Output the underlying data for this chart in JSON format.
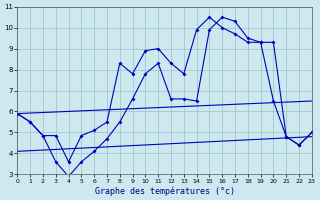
{
  "title": "Graphe des températures (°c)",
  "bg_color": "#cde8ef",
  "grid_color": "#9bbfc8",
  "line_color": "#0000bb",
  "xlim": [
    0,
    23
  ],
  "ylim": [
    3,
    11
  ],
  "xtick_labels": [
    "0",
    "1",
    "2",
    "3",
    "4",
    "5",
    "6",
    "7",
    "8",
    "9",
    "10",
    "11",
    "12",
    "13",
    "14",
    "15",
    "16",
    "17",
    "18",
    "19",
    "20",
    "21",
    "22",
    "23"
  ],
  "ytick_labels": [
    "3",
    "4",
    "5",
    "6",
    "7",
    "8",
    "9",
    "10",
    "11"
  ],
  "max_x": [
    0,
    1,
    2,
    3,
    4,
    5,
    6,
    7,
    8,
    9,
    10,
    11,
    12,
    13,
    14,
    15,
    16,
    17,
    18,
    19,
    20,
    21,
    22,
    23
  ],
  "max_y": [
    5.9,
    5.5,
    4.85,
    4.85,
    3.6,
    4.85,
    5.1,
    5.5,
    8.3,
    7.8,
    8.9,
    9.0,
    8.3,
    7.8,
    9.9,
    10.5,
    10.0,
    9.7,
    9.3,
    9.3,
    9.3,
    4.8,
    4.4,
    5.0
  ],
  "min_x": [
    0,
    1,
    2,
    3,
    4,
    5,
    6,
    7,
    8,
    9,
    10,
    11,
    12,
    13,
    14,
    15,
    16,
    17,
    18,
    19,
    20,
    21,
    22,
    23
  ],
  "min_y": [
    5.9,
    5.5,
    4.85,
    3.6,
    2.9,
    3.6,
    4.1,
    4.7,
    5.5,
    6.6,
    7.8,
    8.3,
    6.6,
    6.6,
    6.5,
    9.9,
    10.5,
    10.3,
    9.5,
    9.3,
    6.5,
    4.8,
    4.4,
    5.0
  ],
  "trend1_x": [
    0,
    23
  ],
  "trend1_y": [
    5.9,
    6.5
  ],
  "trend2_x": [
    0,
    23
  ],
  "trend2_y": [
    4.1,
    4.8
  ]
}
